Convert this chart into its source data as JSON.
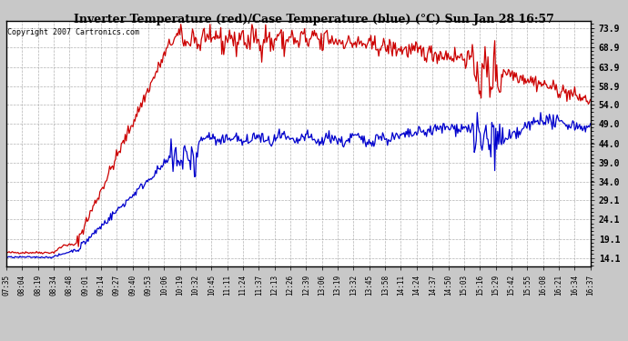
{
  "title": "Inverter Temperature (red)/Case Temperature (blue) (°C) Sun Jan 28 16:57",
  "copyright": "Copyright 2007 Cartronics.com",
  "yticks": [
    14.1,
    19.1,
    24.1,
    29.1,
    34.0,
    39.0,
    44.0,
    49.0,
    54.0,
    58.9,
    63.9,
    68.9,
    73.9
  ],
  "ymin": 12.0,
  "ymax": 76.0,
  "bg_color": "#c8c8c8",
  "plot_bg": "#ffffff",
  "grid_color": "#a0a0a0",
  "red_color": "#cc0000",
  "blue_color": "#0000cc",
  "xtick_labels": [
    "07:35",
    "08:04",
    "08:19",
    "08:34",
    "08:48",
    "09:01",
    "09:14",
    "09:27",
    "09:40",
    "09:53",
    "10:06",
    "10:19",
    "10:32",
    "10:45",
    "11:11",
    "11:24",
    "11:37",
    "12:13",
    "12:26",
    "12:39",
    "13:06",
    "13:19",
    "13:32",
    "13:45",
    "13:58",
    "14:11",
    "14:24",
    "14:37",
    "14:50",
    "15:03",
    "15:16",
    "15:29",
    "15:42",
    "15:55",
    "16:08",
    "16:21",
    "16:34",
    "16:37"
  ]
}
